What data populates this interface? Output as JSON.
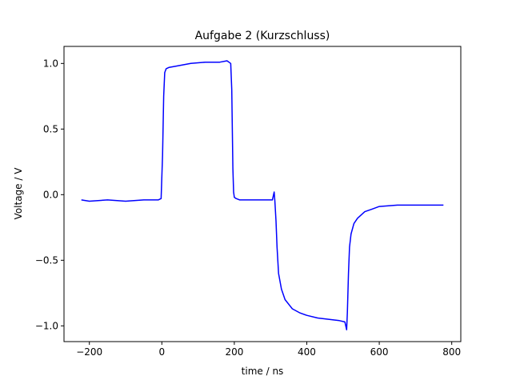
{
  "chart_data": {
    "type": "line",
    "title": "Aufgabe 2 (Kurzschluss)",
    "xlabel": "time / ns",
    "ylabel": "Voltage / V",
    "xlim": [
      -270,
      825
    ],
    "ylim": [
      -1.12,
      1.13
    ],
    "x_ticks": [
      -200,
      0,
      200,
      400,
      600,
      800
    ],
    "x_tick_labels": [
      "−200",
      "0",
      "200",
      "400",
      "600",
      "800"
    ],
    "y_ticks": [
      -1.0,
      -0.5,
      0.0,
      0.5,
      1.0
    ],
    "y_tick_labels": [
      "−1.0",
      "−0.5",
      "0.0",
      "0.5",
      "1.0"
    ],
    "grid": false,
    "series": [
      {
        "color": "#0000ff",
        "x": [
          -222,
          -200,
          -150,
          -100,
          -50,
          -10,
          -2,
          2,
          5,
          8,
          12,
          20,
          40,
          80,
          120,
          160,
          180,
          190,
          193,
          196,
          198,
          200,
          205,
          215,
          250,
          280,
          305,
          310,
          312,
          315,
          318,
          322,
          330,
          340,
          360,
          380,
          400,
          430,
          460,
          490,
          505,
          510,
          512,
          515,
          518,
          522,
          530,
          540,
          560,
          580,
          600,
          650,
          700,
          750,
          777
        ],
        "y": [
          -0.04,
          -0.05,
          -0.04,
          -0.05,
          -0.04,
          -0.04,
          -0.03,
          0.3,
          0.75,
          0.93,
          0.96,
          0.97,
          0.98,
          1.0,
          1.01,
          1.01,
          1.02,
          1.0,
          0.8,
          0.2,
          0.02,
          -0.02,
          -0.03,
          -0.04,
          -0.04,
          -0.04,
          -0.04,
          0.02,
          -0.05,
          -0.2,
          -0.4,
          -0.6,
          -0.72,
          -0.8,
          -0.87,
          -0.9,
          -0.92,
          -0.94,
          -0.95,
          -0.96,
          -0.97,
          -1.03,
          -0.9,
          -0.6,
          -0.4,
          -0.3,
          -0.22,
          -0.18,
          -0.13,
          -0.11,
          -0.09,
          -0.08,
          -0.08,
          -0.08,
          -0.08
        ]
      }
    ]
  }
}
